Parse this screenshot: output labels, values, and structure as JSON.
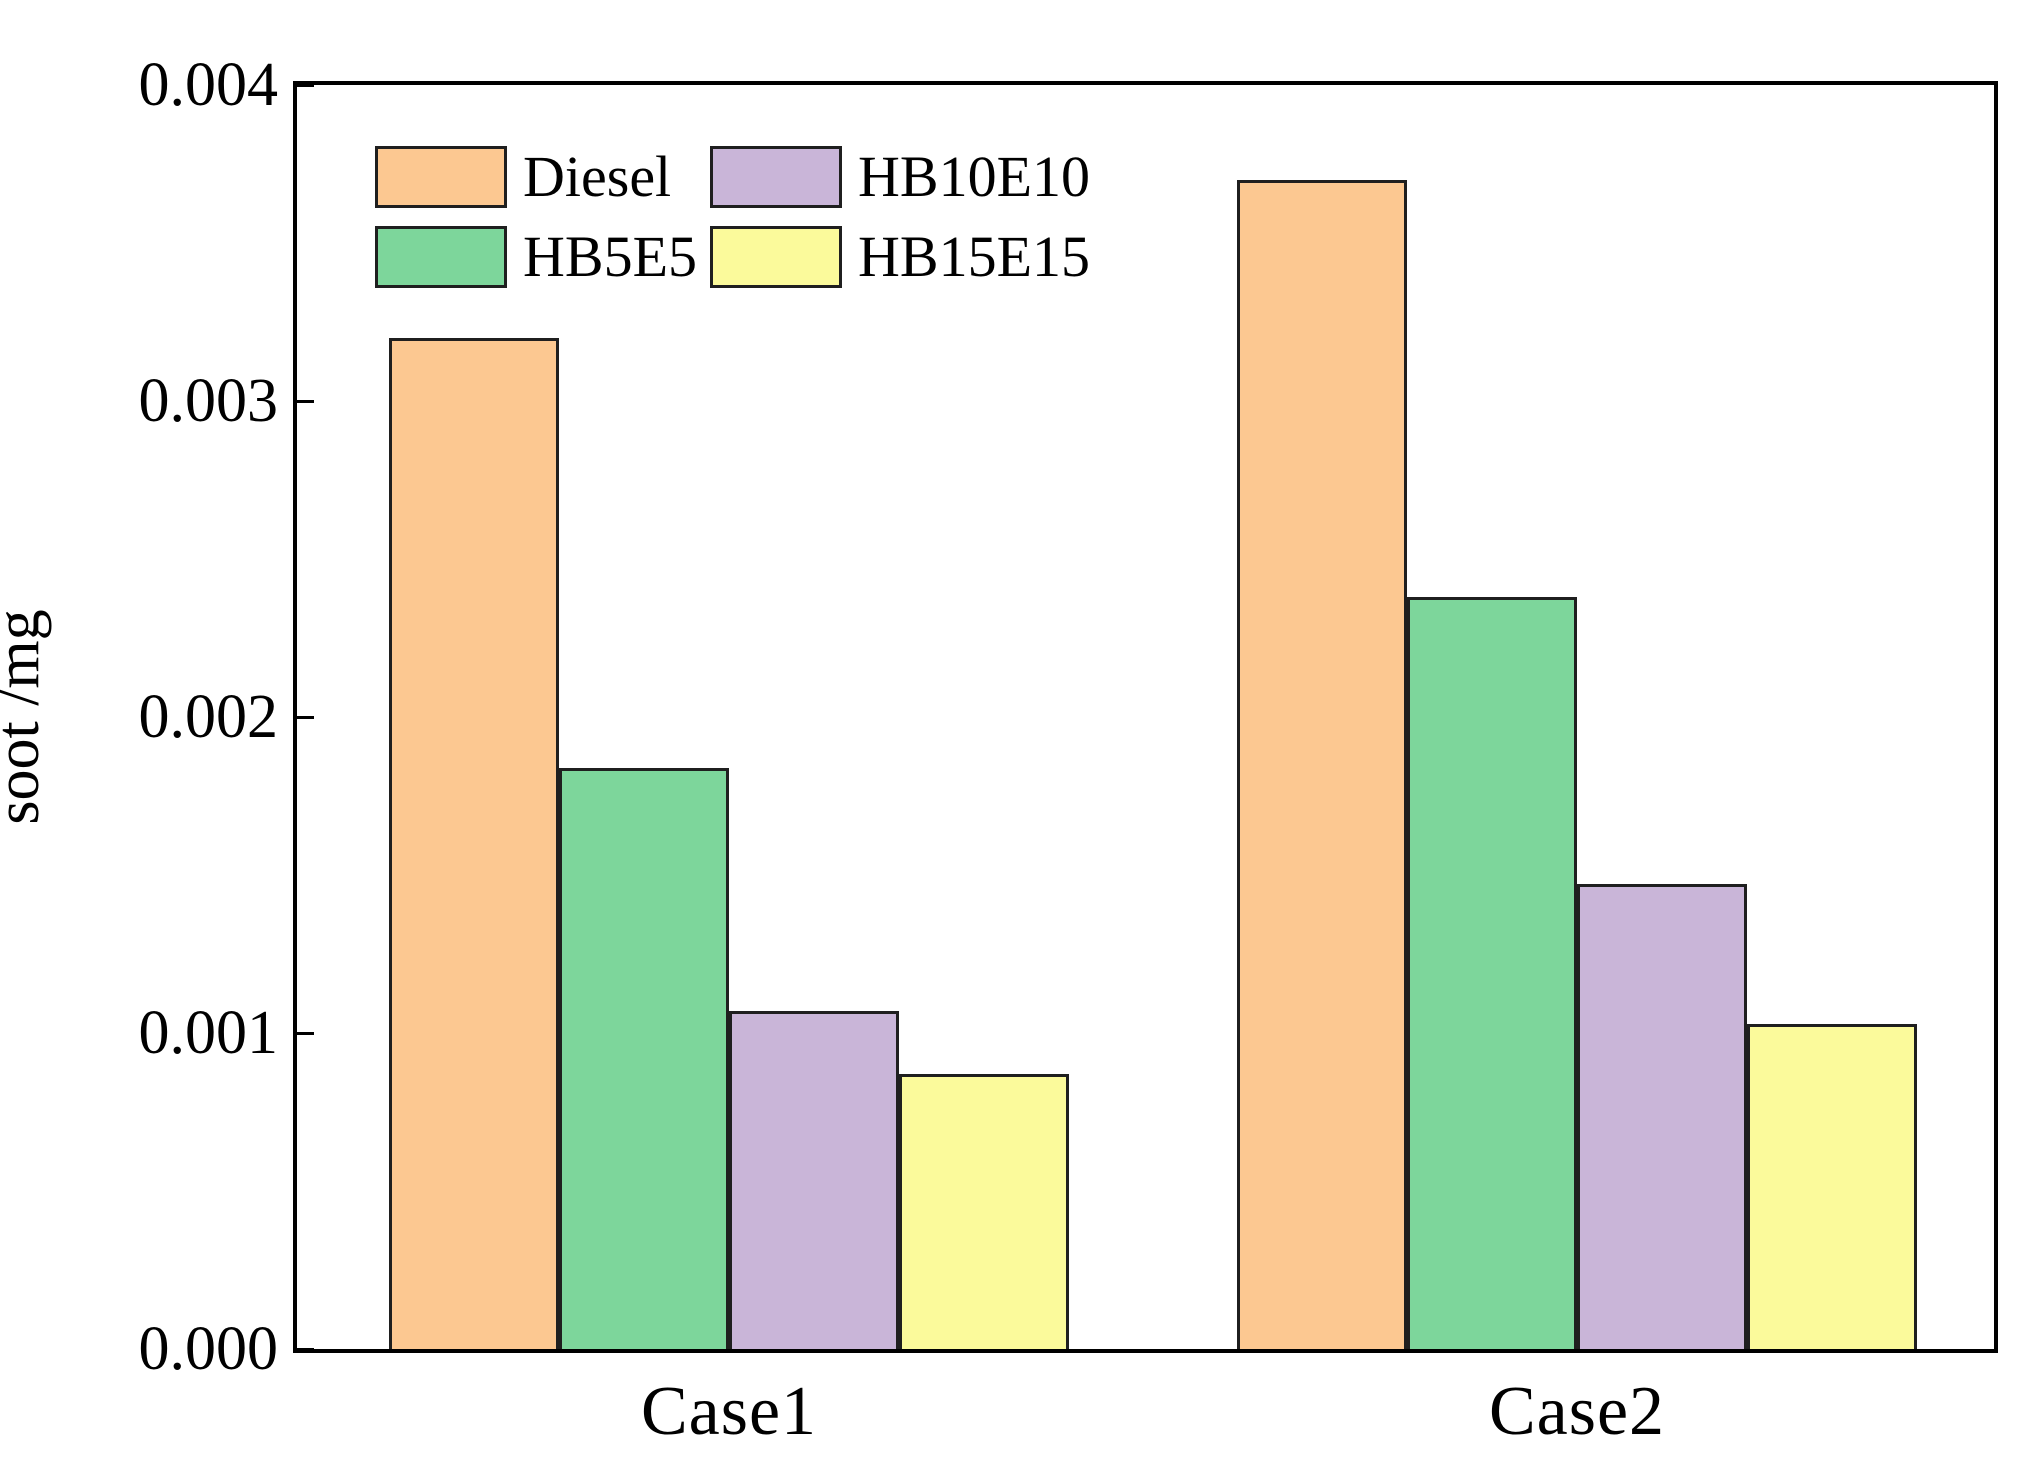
{
  "figure": {
    "background_color": "#ffffff",
    "frame_color": "#000000",
    "bar_edge_color": "#1f1f1f"
  },
  "axes": {
    "ylabel": "soot /mg",
    "ytick_labels": [
      "0.000",
      "0.001",
      "0.002",
      "0.003",
      "0.004"
    ],
    "xtick_labels": [
      "Case1",
      "Case2"
    ]
  },
  "legend": {
    "entries": [
      {
        "label": "Diesel",
        "color": "#FCC891"
      },
      {
        "label": "HB5E5",
        "color": "#7DD69B"
      },
      {
        "label": "HB10E10",
        "color": "#C9B5D8"
      },
      {
        "label": "HB15E15",
        "color": "#FBFA9B"
      }
    ]
  },
  "chart_data": {
    "type": "bar",
    "title": "",
    "xlabel": "",
    "ylabel": "soot /mg",
    "categories": [
      "Case1",
      "Case2"
    ],
    "series": [
      {
        "name": "Diesel",
        "color": "#FCC891",
        "values": [
          0.0032,
          0.0037
        ]
      },
      {
        "name": "HB5E5",
        "color": "#7DD69B",
        "values": [
          0.00184,
          0.00238
        ]
      },
      {
        "name": "HB10E10",
        "color": "#C9B5D8",
        "values": [
          0.00107,
          0.00147
        ]
      },
      {
        "name": "HB15E15",
        "color": "#FBFA9B",
        "values": [
          0.00087,
          0.00103
        ]
      }
    ],
    "ylim": [
      0,
      0.004
    ],
    "yticks": [
      0,
      0.001,
      0.002,
      0.003,
      0.004
    ],
    "grid": false,
    "legend_position": "upper-left-inside",
    "tick_direction": "in"
  }
}
